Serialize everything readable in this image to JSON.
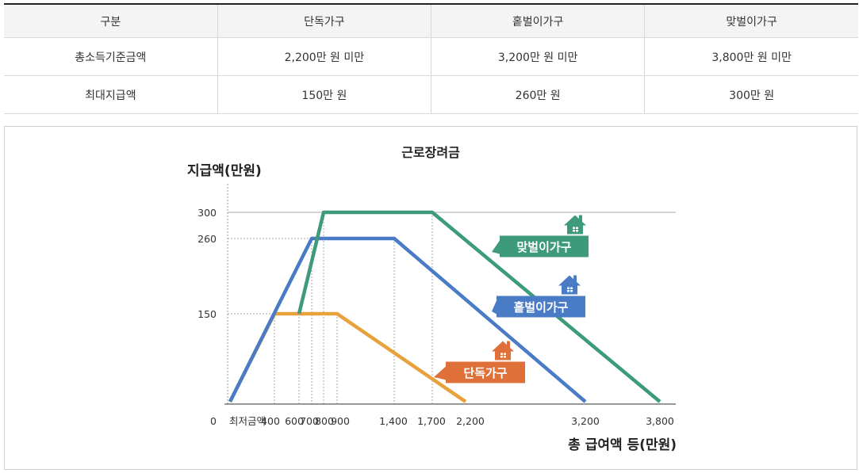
{
  "table": {
    "headers": [
      "구분",
      "단독가구",
      "홑벌이가구",
      "맞벌이가구"
    ],
    "rows": [
      [
        "총소득기준금액",
        "2,200만 원 미만",
        "3,200만 원 미만",
        "3,800만 원 미만"
      ],
      [
        "최대지급액",
        "150만 원",
        "260만 원",
        "300만 원"
      ]
    ]
  },
  "chart_data": {
    "type": "line",
    "title": "근로장려금",
    "ylabel": "지급액(만원)",
    "xlabel": "총 급여액 등(만원)",
    "x_tick_labels": [
      "0",
      "최저금액",
      "400",
      "600",
      "700",
      "800",
      "900",
      "1,400",
      "1,700",
      "2,200",
      "3,200",
      "3,800"
    ],
    "y_tick_labels": [
      "150",
      "260",
      "300"
    ],
    "series": [
      {
        "name": "단독가구",
        "color": "#e8a23b",
        "label_color": "#e0703a",
        "points": [
          [
            0,
            0
          ],
          [
            400,
            150
          ],
          [
            900,
            150
          ],
          [
            2200,
            0
          ]
        ]
      },
      {
        "name": "홑벌이가구",
        "color": "#4a7cc6",
        "label_color": "#4a7cc6",
        "points": [
          [
            0,
            0
          ],
          [
            700,
            260
          ],
          [
            1400,
            260
          ],
          [
            3200,
            0
          ]
        ]
      },
      {
        "name": "맞벌이가구",
        "color": "#3d9a7a",
        "label_color": "#3d9a7a",
        "points": [
          [
            600,
            150
          ],
          [
            800,
            300
          ],
          [
            1700,
            300
          ],
          [
            3800,
            0
          ]
        ]
      }
    ]
  }
}
